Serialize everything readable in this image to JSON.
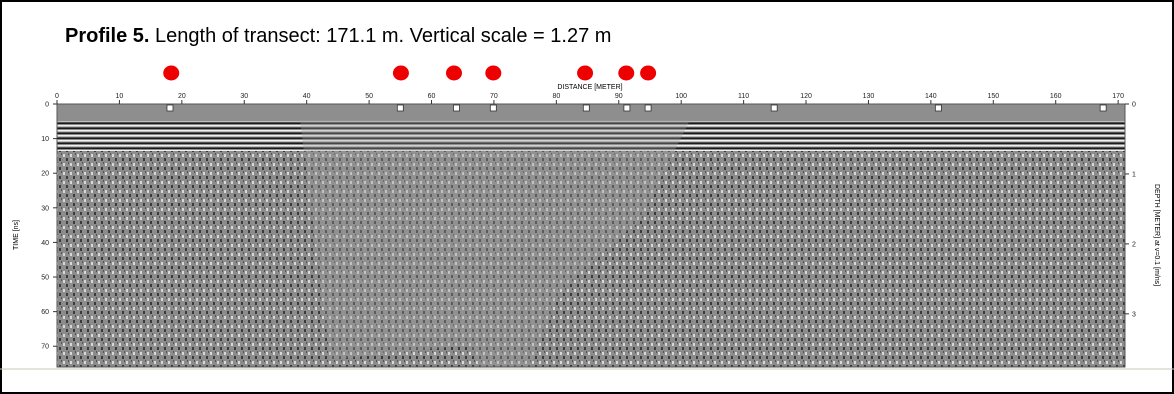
{
  "chart_data": {
    "type": "radargram",
    "title": "Profile 5.",
    "subtitle": "Length of transect: 171.1 m. Vertical scale = 1.27 m",
    "x_label": "DISTANCE [METER]",
    "y_label": "TIME [ns]",
    "y2_label": "DEPTH [METER] at v=0.1 [m/ns]",
    "xlim": [
      0,
      171.1
    ],
    "xticks": [
      0,
      10,
      20,
      30,
      40,
      50,
      60,
      70,
      80,
      90,
      100,
      110,
      120,
      130,
      140,
      150,
      160,
      170
    ],
    "ylim": [
      0,
      76
    ],
    "yticks": [
      0,
      10,
      20,
      30,
      40,
      50,
      60,
      70
    ],
    "y2lim": [
      0,
      3.76
    ],
    "y2ticks": [
      0,
      1,
      2,
      3
    ],
    "red_dots": {
      "color": "#ee0000",
      "x": [
        18.3,
        55.1,
        63.6,
        69.9,
        84.6,
        91.2,
        94.7
      ]
    },
    "square_markers": {
      "color": "#ffffff",
      "x": [
        18.1,
        55,
        64,
        69.9,
        84.8,
        91.3,
        94.7,
        114.9,
        141.2,
        167.6
      ]
    }
  }
}
